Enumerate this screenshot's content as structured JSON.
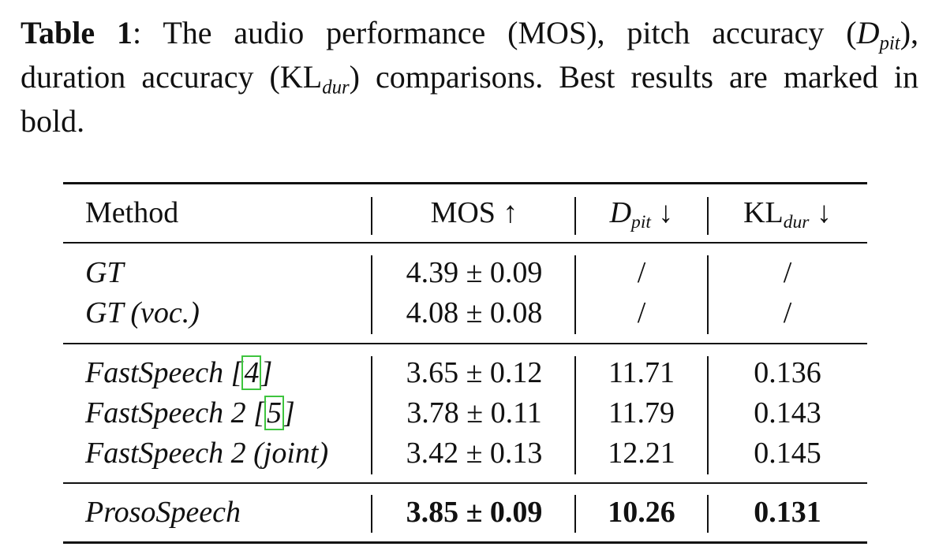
{
  "caption": {
    "label": "Table 1",
    "text_a": ": The audio performance (MOS), pitch accuracy (",
    "dpit_sym": "D",
    "dpit_sub": "pit",
    "text_b": "), duration accuracy (KL",
    "kl_sub": "dur",
    "text_c": ") comparisons.  Best results are marked in bold."
  },
  "header": {
    "method": "Method",
    "mos": "MOS ↑",
    "dpit_sym": "D",
    "dpit_sub": "pit",
    "dpit_arrow": " ↓",
    "kl": "KL",
    "kl_sub": "dur",
    "kl_arrow": " ↓"
  },
  "groups": [
    [
      {
        "method": "GT",
        "mos": "4.39 ± 0.09",
        "dpit": "/",
        "kl": "/"
      },
      {
        "method": "GT (voc.)",
        "mos": "4.08 ± 0.08",
        "dpit": "/",
        "kl": "/"
      }
    ],
    [
      {
        "method": "FastSpeech [",
        "cite": "4",
        "cite_close": "]",
        "mos": "3.65 ± 0.12",
        "dpit": "11.71",
        "kl": "0.136"
      },
      {
        "method": "FastSpeech 2 [",
        "cite": "5",
        "cite_close": "]",
        "mos": "3.78 ± 0.11",
        "dpit": "11.79",
        "kl": "0.143"
      },
      {
        "method": "FastSpeech 2 (joint)",
        "mos": "3.42 ± 0.13",
        "dpit": "12.21",
        "kl": "0.145"
      }
    ],
    [
      {
        "method": "ProsoSpeech",
        "mos": "3.85 ± 0.09",
        "dpit": "10.26",
        "kl": "0.131"
      }
    ]
  ]
}
